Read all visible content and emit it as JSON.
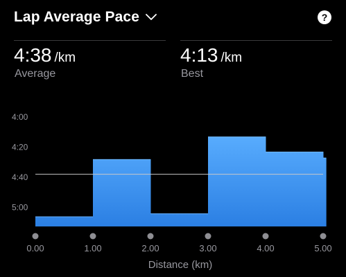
{
  "header": {
    "title": "Lap Average Pace",
    "help_glyph": "?"
  },
  "stats": [
    {
      "value": "4:38",
      "unit": "/km",
      "label": "Average"
    },
    {
      "value": "4:13",
      "unit": "/km",
      "label": "Best"
    }
  ],
  "colors": {
    "background": "#000000",
    "bar_top": "#5aaeff",
    "bar_bottom": "#2b7fe3",
    "average_line": "#c8c8c8",
    "muted_text": "#98989f",
    "dot": "#8e8e93"
  },
  "chart_data": {
    "type": "area",
    "title": "",
    "xlabel": "Distance (km)",
    "ylabel": "",
    "x_ticks": [
      0,
      1,
      2,
      3,
      4,
      5
    ],
    "x_tick_labels": [
      "0.00",
      "1.00",
      "2.00",
      "3.00",
      "4.00",
      "5.00"
    ],
    "y_tick_labels": [
      "4:00",
      "4:20",
      "4:40",
      "5:00"
    ],
    "y_tick_seconds": [
      240,
      260,
      280,
      300
    ],
    "ylim_seconds": [
      240,
      312
    ],
    "y_inverted": true,
    "xlim": [
      0,
      5.05
    ],
    "average_pace_seconds": 278,
    "laps": [
      {
        "start": 0.0,
        "end": 1.0,
        "pace_seconds": 306
      },
      {
        "start": 1.0,
        "end": 2.0,
        "pace_seconds": 268
      },
      {
        "start": 2.0,
        "end": 3.0,
        "pace_seconds": 304
      },
      {
        "start": 3.0,
        "end": 4.0,
        "pace_seconds": 253
      },
      {
        "start": 4.0,
        "end": 5.0,
        "pace_seconds": 263
      },
      {
        "start": 5.0,
        "end": 5.05,
        "pace_seconds": 267
      }
    ]
  }
}
